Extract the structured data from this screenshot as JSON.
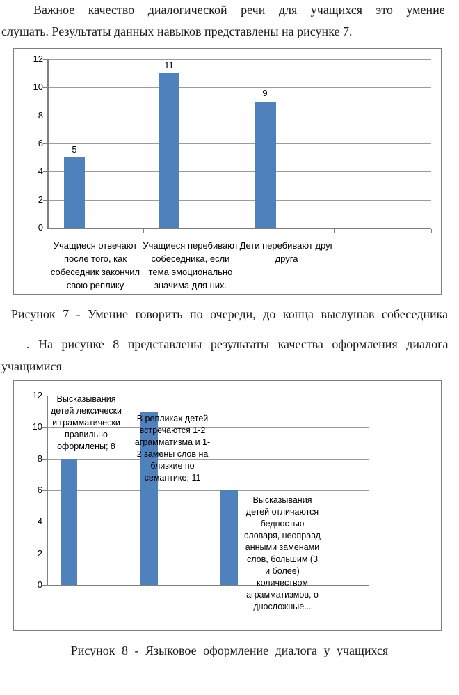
{
  "document": {
    "paragraph1_line1": "Важное качество диалогической речи для учащихся это умение",
    "paragraph1_line2": "слушать. Результаты данных навыков представлены на рисунке 7.",
    "figure7_caption": "Рисунок 7 - Умение говорить по очереди, до конца выслушав собеседника",
    "paragraph2_line1": ". На рисунке 8 представлены результаты качества оформления диалога",
    "paragraph2_line2": "учащимися",
    "figure8_caption": "Рисунок 8 - Языковое оформление диалога у учащихся"
  },
  "chart_data": [
    {
      "type": "bar",
      "title": "",
      "categories": [
        "Учащиеся отвечают после того, как собеседник закончил свою реплику",
        "Учащиеся перебивают собеседника, если тема эмоционально значима для них.",
        "Дети перебивают друг друга"
      ],
      "values": [
        5,
        11,
        9
      ],
      "data_labels": [
        "5",
        "11",
        "9"
      ],
      "wrapped_labels": [
        "Учащиеся отвечают\nпосле того, как\nсобеседник закончил\nсвою реплику",
        "Учащиеся перебивают\nсобеседника, если\nтема эмоционально\nзначима для них.",
        "Дети перебивают друг\nдруга"
      ],
      "xlabel": "",
      "ylabel": "",
      "ylim": [
        0,
        12
      ],
      "yticks": [
        0,
        2,
        4,
        6,
        8,
        10,
        12
      ],
      "grid": true,
      "legend": false,
      "bar_color": "#4F81BD"
    },
    {
      "type": "bar",
      "title": "",
      "categories": [
        "Высказывания детей лексически и грамматически правильно оформлены",
        "В репликах детей встречаются 1-2 аграмматизма и 1-2 замены слов на близкие по семантике",
        "Высказывания детей отличаются бедностью словаря, неоправданными заменами слов, большим (3 и более) количеством аграмматизмов, односложные..."
      ],
      "values": [
        8,
        11,
        6
      ],
      "wrapped_labels": [
        "Высказывания\nдетей лексически\nи грамматически\nправильно\nоформлены; 8",
        "В репликах детей\nвстречаются 1-2\nаграмматизма и 1-\n2 замены слов на\nблизкие по\nсемантике; 11",
        "Высказывания\nдетей отличаются\nбедностью\nсловаря, неоправд\nанными заменами\nслов, большим (3\nи более)\nколичеством\nаграмматизмов, о\nдносложные..."
      ],
      "xlabel": "",
      "ylabel": "",
      "ylim": [
        0,
        12
      ],
      "yticks": [
        0,
        2,
        4,
        6,
        8,
        10,
        12
      ],
      "grid": true,
      "legend": false,
      "bar_color": "#4F81BD"
    }
  ]
}
